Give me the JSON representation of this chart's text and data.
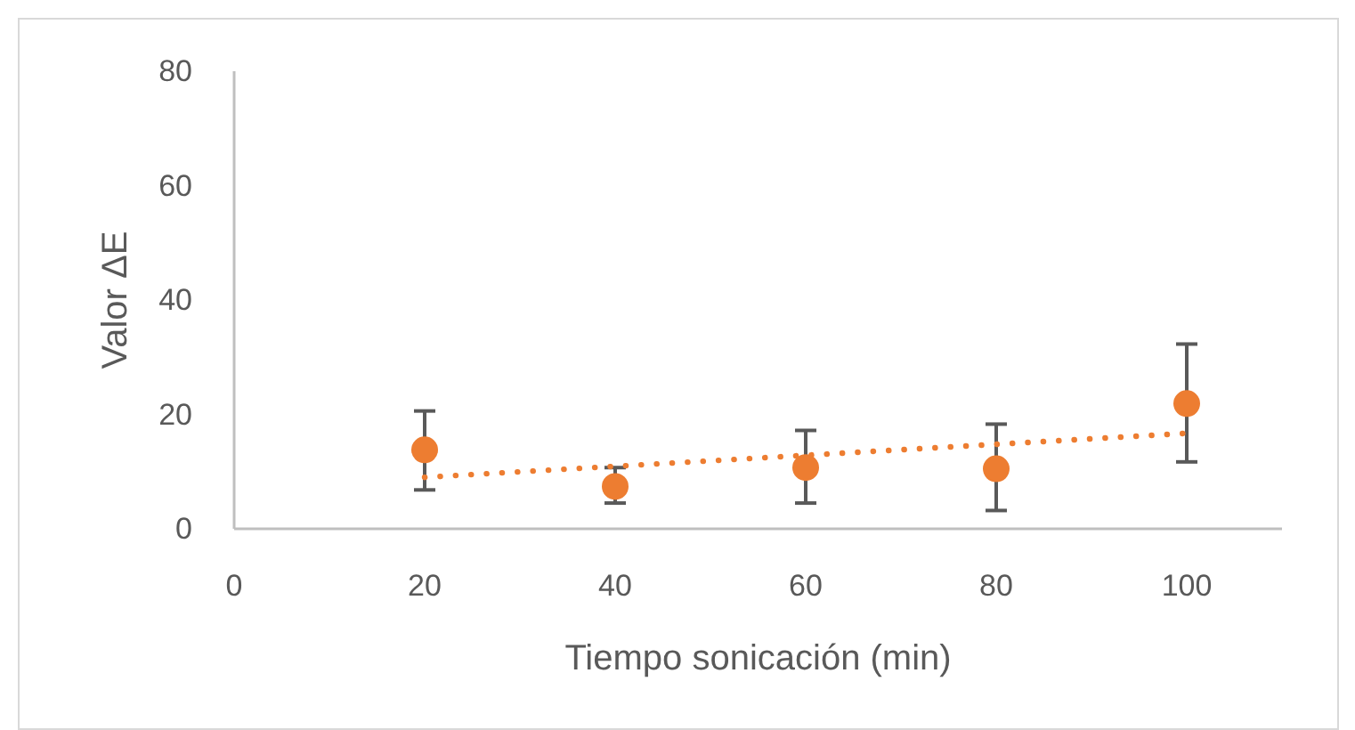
{
  "chart_data": {
    "type": "scatter",
    "xlabel": "Tiempo sonicación (min)",
    "ylabel": "Valor ΔE",
    "xlim": [
      0,
      110
    ],
    "ylim": [
      0,
      80
    ],
    "xticks": [
      0,
      20,
      40,
      60,
      80,
      100
    ],
    "yticks": [
      0,
      20,
      40,
      60,
      80
    ],
    "marker": "circle",
    "series": [
      {
        "color": "#ed7d31",
        "x": [
          20,
          40,
          60,
          80,
          100
        ],
        "values": [
          13.8,
          7.4,
          10.7,
          10.5,
          21.9
        ],
        "errors": [
          [
            6.8,
            20.6
          ],
          [
            4.5,
            10.7
          ],
          [
            4.5,
            17.2
          ],
          [
            3.2,
            18.3
          ],
          [
            11.7,
            32.3
          ]
        ]
      },
      {
        "type": "line",
        "color": "#ed7d31",
        "x": [
          20,
          100
        ],
        "values": [
          9.0,
          16.7
        ],
        "line_style": "dotted",
        "marker": "none"
      }
    ]
  }
}
